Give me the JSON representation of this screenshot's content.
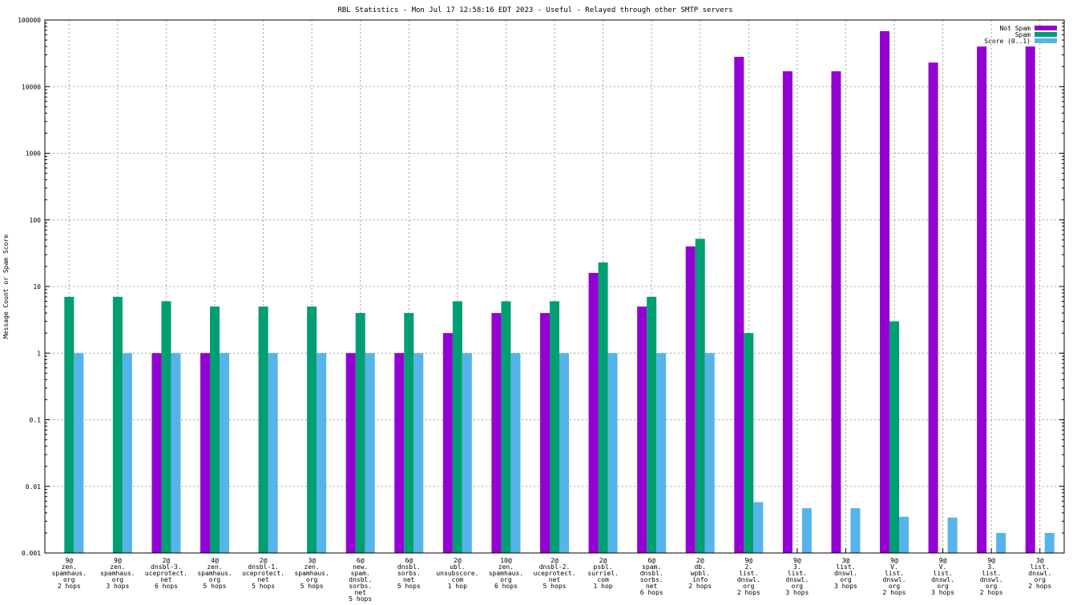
{
  "chart_data": {
    "type": "bar",
    "title": "RBL Statistics - Mon Jul 17 12:58:16 EDT 2023 - Useful - Relayed through other SMTP servers",
    "xlabel": "",
    "ylabel": "Message Count or Spam Score",
    "yscale": "log",
    "ylim": [
      0.001,
      100000
    ],
    "grid": true,
    "legend_position": "top-right",
    "yticks": [
      "0.001",
      "0.01",
      "0.1",
      "1",
      "10",
      "100",
      "1000",
      "10000",
      "100000"
    ],
    "categories": [
      [
        "9@",
        "zen.",
        "spamhaus.",
        "org",
        "2 hops"
      ],
      [
        "9@",
        "zen.",
        "spamhaus.",
        "org",
        "3 hops"
      ],
      [
        "2@",
        "dnsbl-3.",
        "uceprotect.",
        "net",
        "6 hops"
      ],
      [
        "4@",
        "zen.",
        "spamhaus.",
        "org",
        "5 hops"
      ],
      [
        "2@",
        "dnsbl-1.",
        "uceprotect.",
        "net",
        "5 hops"
      ],
      [
        "3@",
        "zen.",
        "spamhaus.",
        "org",
        "5 hops"
      ],
      [
        "6@",
        "new.",
        "spam.",
        "dnsbl.",
        "sorbs.",
        "net",
        "5 hops"
      ],
      [
        "6@",
        "dnsbl.",
        "sorbs.",
        "net",
        "5 hops"
      ],
      [
        "2@",
        "ubl.",
        "unsubscore.",
        "com",
        "1 hop"
      ],
      [
        "10@",
        "zen.",
        "spamhaus.",
        "org",
        "6 hops"
      ],
      [
        "2@",
        "dnsbl-2.",
        "uceprotect.",
        "net",
        "5 hops"
      ],
      [
        "2@",
        "psbl.",
        "surriel.",
        "com",
        "1 hop"
      ],
      [
        "6@",
        "spam.",
        "dnsbl.",
        "sorbs.",
        "net",
        "6 hops"
      ],
      [
        "2@",
        "db.",
        "wpbl.",
        "info",
        "2 hops"
      ],
      [
        "9@",
        "2.",
        "list.",
        "dnswl.",
        "org",
        "2 hops"
      ],
      [
        "9@",
        "3.",
        "list.",
        "dnswl.",
        "org",
        "3 hops"
      ],
      [
        "3@",
        "list.",
        "dnswl.",
        "org",
        "3 hops"
      ],
      [
        "9@",
        "V.",
        "list.",
        "dnswl.",
        "org",
        "2 hops"
      ],
      [
        "9@",
        "V.",
        "list.",
        "dnswl.",
        "org",
        "3 hops"
      ],
      [
        "9@",
        "3.",
        "list.",
        "dnswl.",
        "org",
        "2 hops"
      ],
      [
        "3@",
        "list.",
        "dnswl.",
        "org",
        "2 hops"
      ]
    ],
    "series": [
      {
        "name": "Not Spam",
        "color": "#9400d3",
        "values": [
          null,
          null,
          1,
          1,
          null,
          null,
          1,
          1,
          2,
          4,
          4,
          16,
          5,
          40,
          28000,
          17000,
          17000,
          68000,
          23000,
          40000,
          40000
        ]
      },
      {
        "name": "Spam",
        "color": "#009e73",
        "values": [
          7,
          7,
          6,
          5,
          5,
          5,
          4,
          4,
          6,
          6,
          6,
          23,
          7,
          52,
          2,
          null,
          null,
          3,
          null,
          null,
          null
        ]
      },
      {
        "name": "Score (0..1)",
        "color": "#56b4e9",
        "values": [
          1,
          1,
          1,
          1,
          1,
          1,
          1,
          1,
          1,
          1,
          1,
          1,
          1,
          1,
          0.0058,
          0.0047,
          0.0047,
          0.0035,
          0.0034,
          0.002,
          0.002
        ]
      }
    ]
  }
}
